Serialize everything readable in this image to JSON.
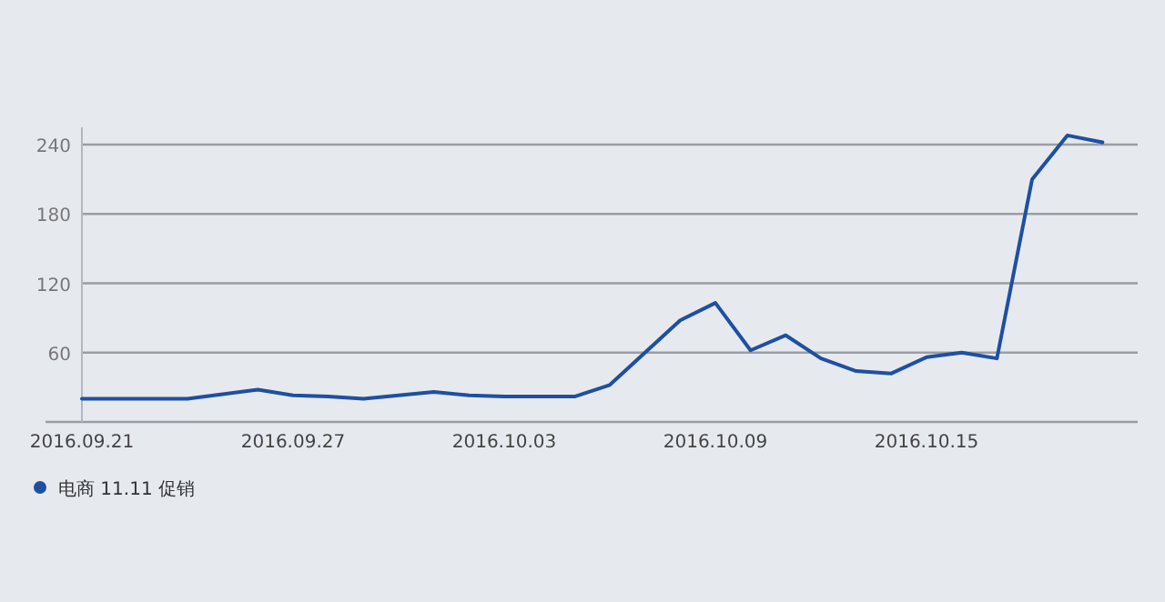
{
  "chart_data": {
    "type": "line",
    "x": [
      "2016-09-21",
      "2016-09-22",
      "2016-09-23",
      "2016-09-24",
      "2016-09-25",
      "2016-09-26",
      "2016-09-27",
      "2016-09-28",
      "2016-09-29",
      "2016-09-30",
      "2016-10-01",
      "2016-10-02",
      "2016-10-03",
      "2016-10-04",
      "2016-10-05",
      "2016-10-06",
      "2016-10-07",
      "2016-10-08",
      "2016-10-09",
      "2016-10-10",
      "2016-10-11",
      "2016-10-12",
      "2016-10-13",
      "2016-10-14",
      "2016-10-15",
      "2016-10-16",
      "2016-10-17",
      "2016-10-18",
      "2016-10-19",
      "2016-10-20"
    ],
    "series": [
      {
        "name": "电商 11.11 促销",
        "color": "#1f4fa0",
        "values": [
          20,
          20,
          20,
          20,
          24,
          28,
          23,
          22,
          20,
          23,
          26,
          23,
          22,
          22,
          22,
          32,
          60,
          88,
          103,
          62,
          75,
          55,
          44,
          42,
          56,
          60,
          55,
          210,
          248,
          242
        ]
      }
    ],
    "xlim": [
      "2016-09-21",
      "2016-10-21"
    ],
    "xticks": [
      {
        "value": "2016-09-21",
        "label": "2016.09.21"
      },
      {
        "value": "2016-09-27",
        "label": "2016.09.27"
      },
      {
        "value": "2016-10-03",
        "label": "2016.10.03"
      },
      {
        "value": "2016-10-09",
        "label": "2016.10.09"
      },
      {
        "value": "2016-10-15",
        "label": "2016.10.15"
      }
    ],
    "ylim": [
      0,
      255
    ],
    "yticks": [
      60,
      120,
      180,
      240
    ],
    "grid": "y",
    "legend": "bottom left"
  }
}
